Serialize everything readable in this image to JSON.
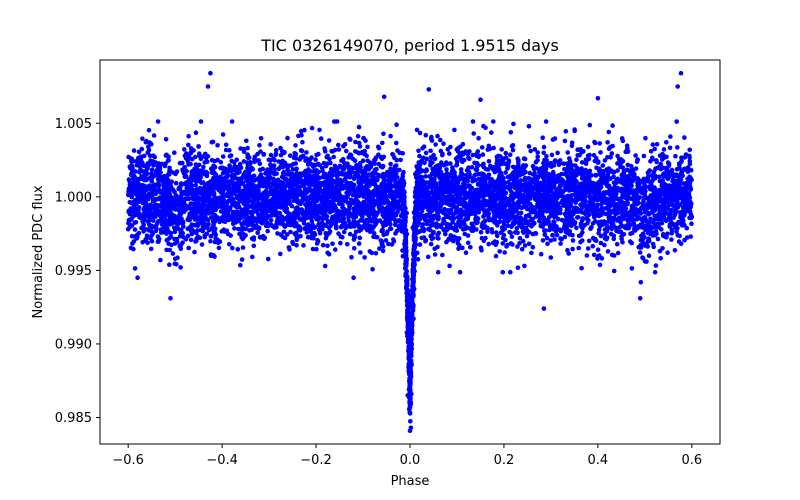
{
  "chart_data": {
    "type": "scatter",
    "title": "TIC 0326149070, period 1.9515 days",
    "xlabel": "Phase",
    "ylabel": "Normalized PDC flux",
    "xlim": [
      -0.66,
      0.66
    ],
    "ylim": [
      0.9832,
      1.0093
    ],
    "xticks": [
      -0.6,
      -0.4,
      -0.2,
      0.0,
      0.2,
      0.4,
      0.6
    ],
    "xtick_labels": [
      "−0.6",
      "−0.4",
      "−0.2",
      "0.0",
      "0.2",
      "0.4",
      "0.6"
    ],
    "yticks": [
      0.985,
      0.99,
      0.995,
      1.0,
      1.005
    ],
    "ytick_labels": [
      "0.985",
      "0.990",
      "0.995",
      "1.000",
      "1.005"
    ],
    "grid": false,
    "series": [
      {
        "name": "PDC flux",
        "color": "#0000ff",
        "phase_range": [
          -0.6,
          0.6
        ],
        "baseline_flux": 1.0,
        "scatter_std": 0.0016,
        "primary_eclipse": {
          "phase": 0.0,
          "min_flux": 0.9865,
          "half_width": 0.016
        },
        "secondary_eclipse": {
          "phase": 0.5,
          "depth": 0.0012,
          "half_width": 0.02
        },
        "secondary_eclipse_mirror": {
          "phase": -0.5,
          "depth": 0.0012,
          "half_width": 0.02
        },
        "notable_points": [
          {
            "x": -0.425,
            "y": 1.0084
          },
          {
            "x": -0.43,
            "y": 1.0075
          },
          {
            "x": 0.577,
            "y": 1.0084
          },
          {
            "x": 0.57,
            "y": 1.0075
          },
          {
            "x": 0.04,
            "y": 1.0073
          },
          {
            "x": -0.055,
            "y": 1.0068
          },
          {
            "x": 0.15,
            "y": 1.0066
          },
          {
            "x": 0.4,
            "y": 1.0067
          },
          {
            "x": 0.285,
            "y": 0.9924
          },
          {
            "x": -0.12,
            "y": 0.9945
          },
          {
            "x": -0.51,
            "y": 0.9931
          },
          {
            "x": 0.49,
            "y": 0.9931
          },
          {
            "x": -0.58,
            "y": 0.9945
          },
          {
            "x": 0.0,
            "y": 0.9841
          },
          {
            "x": 0.002,
            "y": 0.9843
          },
          {
            "x": -0.005,
            "y": 0.9865
          },
          {
            "x": 0.003,
            "y": 0.9866
          }
        ]
      }
    ]
  }
}
